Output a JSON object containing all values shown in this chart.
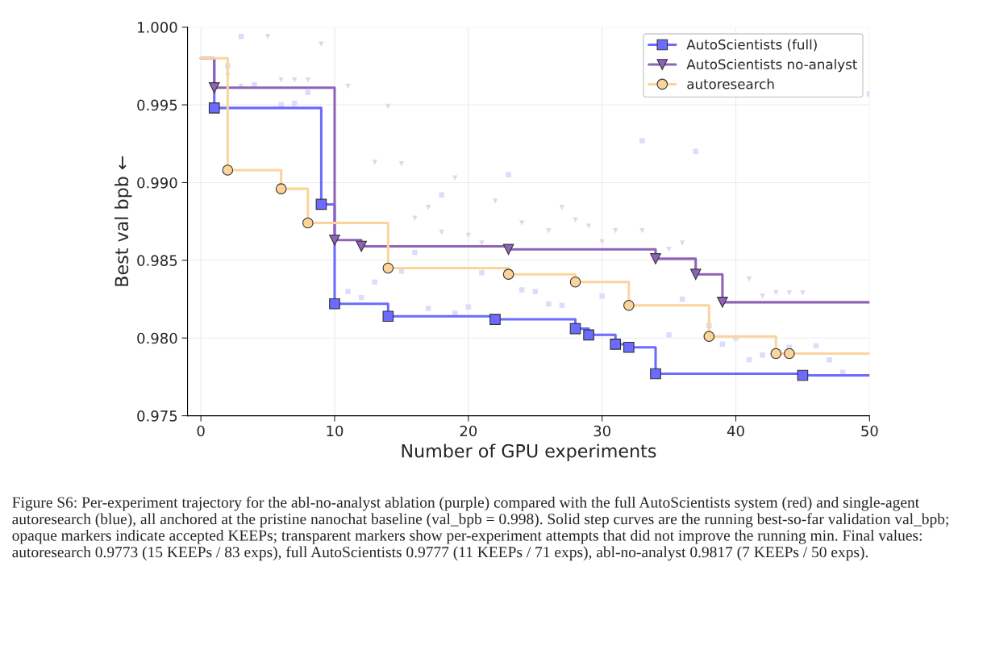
{
  "chart_data": {
    "type": "step",
    "xlabel": "Number of GPU experiments",
    "ylabel": "Best val bpb ←",
    "xlim": [
      -1,
      50
    ],
    "xticks": [
      0,
      10,
      20,
      30,
      40,
      50
    ],
    "ylim": [
      0.975,
      1.0
    ],
    "yticks": [
      {
        "value": 0.975,
        "label": "0.975"
      },
      {
        "value": 0.98,
        "label": "0.980"
      },
      {
        "value": 0.985,
        "label": "0.985"
      },
      {
        "value": 0.99,
        "label": "0.990"
      },
      {
        "value": 0.995,
        "label": "0.995"
      },
      {
        "value": 1.0,
        "label": "1.000"
      }
    ],
    "grid": true,
    "legend": "top right",
    "series": [
      {
        "type": "scatter",
        "marker": "square",
        "color": "#dcdcfc",
        "x": [
          2,
          3,
          4,
          6,
          7,
          8,
          11,
          12,
          13,
          15,
          16,
          17,
          18,
          19,
          20,
          21,
          23,
          24,
          25,
          26,
          27,
          30,
          33,
          35,
          36,
          37,
          38,
          39,
          40,
          41,
          42,
          44,
          46,
          47,
          48,
          50
        ],
        "values": [
          0.9975,
          0.9994,
          0.9963,
          0.995,
          0.9951,
          0.9958,
          0.983,
          0.9826,
          0.9836,
          0.9843,
          0.9855,
          0.9819,
          0.9892,
          0.9816,
          0.982,
          0.9842,
          0.9905,
          0.9831,
          0.983,
          0.9822,
          0.9821,
          0.9827,
          0.9927,
          0.9802,
          0.9825,
          0.992,
          0.9808,
          0.9796,
          0.98,
          0.9786,
          0.9789,
          0.9794,
          0.9795,
          0.9786,
          0.9778,
          0.9957
        ]
      },
      {
        "type": "scatter",
        "marker": "triangle",
        "color": "#e2d6ee",
        "x": [
          2,
          3,
          5,
          6,
          7,
          8,
          9,
          11,
          13,
          14,
          15,
          16,
          17,
          18,
          19,
          20,
          21,
          22,
          24,
          26,
          27,
          28,
          29,
          30,
          31,
          33,
          35,
          36,
          41,
          42,
          43,
          44,
          45
        ],
        "values": [
          0.9969,
          0.9962,
          0.9994,
          0.9966,
          0.9966,
          0.9966,
          0.9989,
          0.9962,
          0.9913,
          0.9949,
          0.9912,
          0.9877,
          0.9884,
          0.9868,
          0.9903,
          0.9866,
          0.9861,
          0.9888,
          0.9874,
          0.9869,
          0.9884,
          0.9876,
          0.9872,
          0.9862,
          0.9869,
          0.9869,
          0.9857,
          0.9861,
          0.9838,
          0.9827,
          0.9829,
          0.9829,
          0.9829
        ]
      },
      {
        "name": "AutoScientists (full)",
        "marker": "square",
        "color": "#6b6bff",
        "x": [
          0,
          1,
          9,
          10,
          14,
          22,
          28,
          29,
          31,
          32,
          34,
          45,
          50
        ],
        "values": [
          0.998,
          0.9948,
          0.9886,
          0.9822,
          0.9814,
          0.9812,
          0.9806,
          0.9802,
          0.9796,
          0.9794,
          0.9777,
          0.9776,
          0.9776
        ]
      },
      {
        "name": "AutoScientists no-analyst",
        "marker": "triangle",
        "color": "#8e63b8",
        "x": [
          0,
          1,
          10,
          12,
          23,
          34,
          37,
          39,
          50
        ],
        "values": [
          0.998,
          0.9961,
          0.9863,
          0.9859,
          0.9857,
          0.9851,
          0.9841,
          0.9823,
          0.9823
        ]
      },
      {
        "name": "autoresearch",
        "marker": "circle",
        "color": "#fbd49b",
        "x": [
          0,
          2,
          6,
          8,
          14,
          23,
          28,
          32,
          38,
          43,
          44,
          50
        ],
        "values": [
          0.998,
          0.9908,
          0.9896,
          0.9874,
          0.9845,
          0.9841,
          0.9836,
          0.9821,
          0.9801,
          0.979,
          0.979,
          0.979
        ]
      }
    ],
    "annotations": [
      "Figure S6: Per-experiment trajectory for the abl-no-analyst ablation (purple) compared with the full AutoScientists system (red) and single-agent autoresearch (blue), all anchored at the pristine nanochat baseline (val_bpb = 0.998). Solid step curves are the running best-so-far validation val_bpb; opaque markers indicate accepted KEEPs; transparent markers show per-experiment attempts that did not improve the running min. Final values: autoresearch 0.9773 (15 KEEPs / 83 exps), full AutoScientists 0.9777 (11 KEEPs / 71 exps), abl-no-analyst 0.9817 (7 KEEPs / 50 exps)."
    ]
  }
}
